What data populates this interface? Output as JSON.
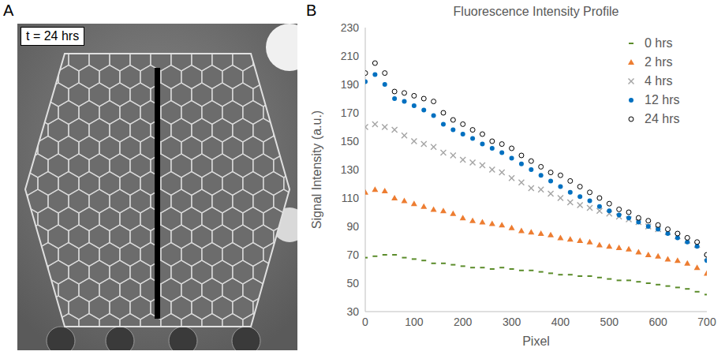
{
  "chart_data": {
    "type": "scatter",
    "title": "Fluorescence Intensity Profile",
    "x_label": "Pixel",
    "y_label": "Signal Intensity (a.u.)",
    "x": [
      0,
      20,
      40,
      60,
      80,
      100,
      120,
      140,
      160,
      180,
      200,
      220,
      240,
      260,
      280,
      300,
      320,
      340,
      360,
      380,
      400,
      420,
      440,
      460,
      480,
      500,
      520,
      540,
      560,
      580,
      600,
      620,
      640,
      660,
      680,
      700
    ],
    "xlim": [
      0,
      700
    ],
    "xticks": [
      0,
      100,
      200,
      300,
      400,
      500,
      600,
      700
    ],
    "ylim": [
      30,
      230
    ],
    "yticks": [
      30,
      50,
      70,
      90,
      110,
      130,
      150,
      170,
      190,
      210,
      230
    ],
    "grid": false,
    "legend": "upper right",
    "series": [
      {
        "name": "0 hrs",
        "color": "#5b8c2a",
        "marker": "dash",
        "values": [
          68,
          69,
          70,
          70,
          68,
          67,
          66,
          64,
          64,
          63,
          62,
          61,
          61,
          60,
          61,
          60,
          59,
          59,
          58,
          57,
          56,
          56,
          55,
          55,
          54,
          53,
          52,
          52,
          51,
          50,
          49,
          48,
          47,
          46,
          44,
          42
        ]
      },
      {
        "name": "2 hrs",
        "color": "#ed7d31",
        "marker": "triangle",
        "values": [
          114,
          116,
          115,
          110,
          108,
          106,
          104,
          102,
          101,
          99,
          96,
          94,
          93,
          92,
          91,
          89,
          87,
          86,
          85,
          84,
          82,
          81,
          80,
          79,
          77,
          76,
          75,
          74,
          72,
          70,
          69,
          67,
          66,
          64,
          61,
          57
        ]
      },
      {
        "name": "4 hrs",
        "color": "#a5a5a5",
        "marker": "cross",
        "values": [
          160,
          162,
          160,
          158,
          154,
          150,
          148,
          146,
          142,
          140,
          137,
          135,
          133,
          130,
          128,
          124,
          121,
          117,
          116,
          113,
          110,
          107,
          105,
          103,
          101,
          99,
          97,
          95,
          93,
          90,
          88,
          86,
          83,
          80,
          77,
          68
        ]
      },
      {
        "name": "12 hrs",
        "color": "#0070c0",
        "marker": "circle",
        "values": [
          192,
          197,
          190,
          180,
          178,
          175,
          172,
          168,
          162,
          158,
          155,
          152,
          148,
          145,
          142,
          138,
          134,
          130,
          126,
          122,
          118,
          114,
          111,
          108,
          104,
          101,
          98,
          96,
          93,
          90,
          88,
          85,
          82,
          79,
          76,
          66
        ]
      },
      {
        "name": "24 hrs",
        "color": "#000000",
        "marker": "open_circle",
        "values": [
          198,
          205,
          198,
          185,
          184,
          182,
          180,
          178,
          170,
          165,
          162,
          158,
          155,
          150,
          148,
          145,
          140,
          136,
          132,
          128,
          126,
          122,
          118,
          114,
          110,
          106,
          102,
          100,
          96,
          94,
          91,
          88,
          85,
          82,
          79,
          70
        ]
      }
    ]
  },
  "panel_a": {
    "letter": "A",
    "label": "t = 24 hrs"
  },
  "panel_b": {
    "letter": "B"
  }
}
